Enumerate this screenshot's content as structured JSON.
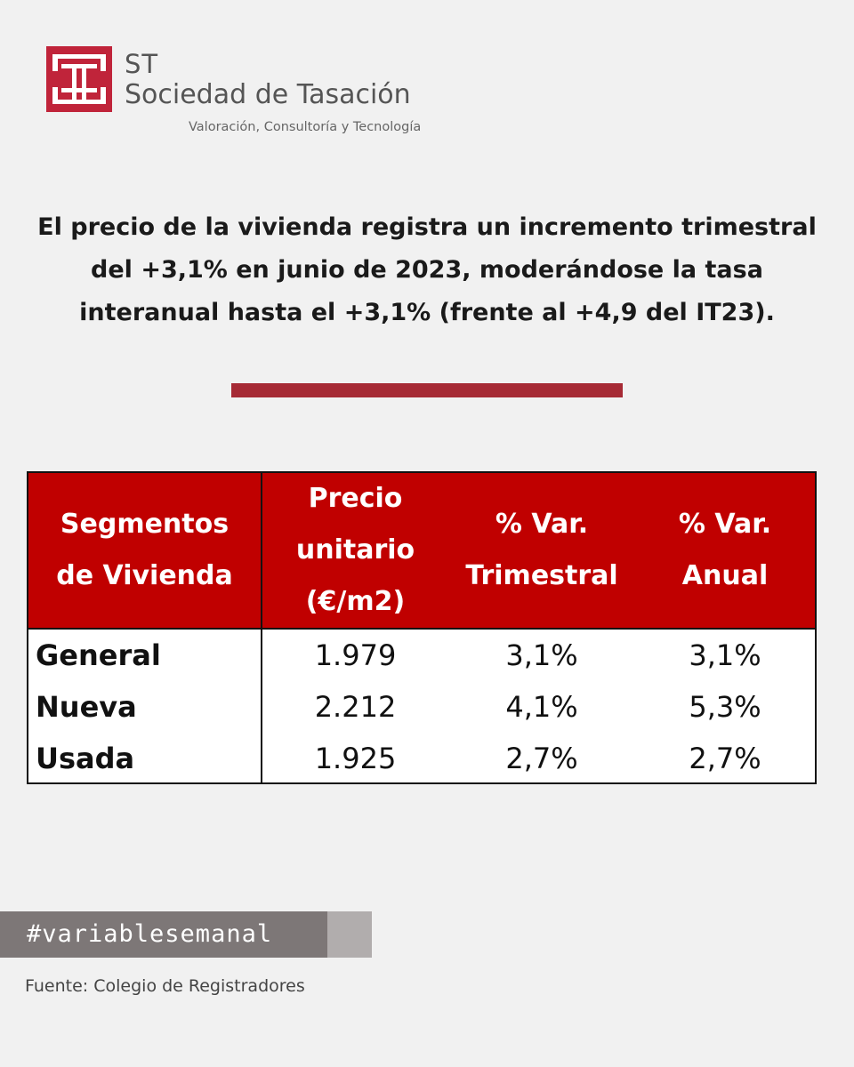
{
  "brand": {
    "short": "ST",
    "name": "Sociedad de Tasación",
    "tagline": "Valoración, Consultoría y Tecnología",
    "accent_color": "#c0243a"
  },
  "headline": {
    "line1": "El precio de la vivienda registra un incremento trimestral",
    "line2": "del +3,1% en junio de 2023, moderándose la tasa",
    "line3": "interanual hasta el +3,1% (frente al +4,9 del IT23)."
  },
  "divider_color": "#a62a35",
  "table": {
    "header_color": "#c00000",
    "headers": [
      {
        "line1": "Segmentos",
        "line2": "de Vivienda",
        "line3": ""
      },
      {
        "line1": "Precio",
        "line2": "unitario",
        "line3": "(€/m2)"
      },
      {
        "line1": "% Var.",
        "line2": "Trimestral",
        "line3": ""
      },
      {
        "line1": "% Var.",
        "line2": "Anual",
        "line3": ""
      }
    ],
    "rows": [
      {
        "segment": "General",
        "price": "1.979",
        "quarterly": "3,1%",
        "annual": "3,1%"
      },
      {
        "segment": "Nueva",
        "price": "2.212",
        "quarterly": "4,1%",
        "annual": "5,3%"
      },
      {
        "segment": "Usada",
        "price": "1.925",
        "quarterly": "2,7%",
        "annual": "2,7%"
      }
    ]
  },
  "hashtag": "#variablesemanal",
  "source": "Fuente: Colegio de Registradores"
}
